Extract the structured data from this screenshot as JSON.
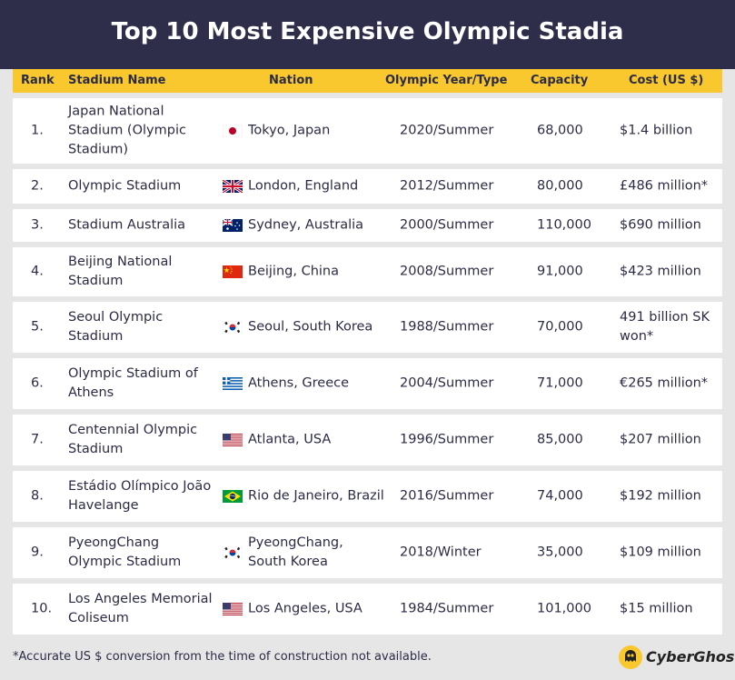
{
  "title": "Top 10 Most Expensive Olympic Stadia",
  "columns": {
    "rank": "Rank",
    "stadium": "Stadium Name",
    "nation": "Nation",
    "year": "Olympic Year/Type",
    "capacity": "Capacity",
    "cost": "Cost (US $)"
  },
  "rows": [
    {
      "rank": "1.",
      "stadium": "Japan National Stadium (Olympic Stadium)",
      "nation": "Tokyo, Japan",
      "flag": "japan-flag",
      "year": "2020/Summer",
      "capacity": "68,000",
      "cost": "$1.4 billion"
    },
    {
      "rank": "2.",
      "stadium": "Olympic Stadium",
      "nation": "London, England",
      "flag": "uk-flag",
      "year": "2012/Summer",
      "capacity": "80,000",
      "cost": "£486 million*"
    },
    {
      "rank": "3.",
      "stadium": "Stadium Australia",
      "nation": "Sydney, Australia",
      "flag": "australia-flag",
      "year": "2000/Summer",
      "capacity": "110,000",
      "cost": "$690 million"
    },
    {
      "rank": "4.",
      "stadium": "Beijing National Stadium",
      "nation": "Beijing, China",
      "flag": "china-flag",
      "year": "2008/Summer",
      "capacity": "91,000",
      "cost": "$423 million"
    },
    {
      "rank": "5.",
      "stadium": "Seoul Olympic Stadium",
      "nation": "Seoul, South Korea",
      "flag": "south-korea-flag",
      "year": "1988/Summer",
      "capacity": "70,000",
      "cost": "491 billion SK won*"
    },
    {
      "rank": "6.",
      "stadium": "Olympic Stadium of Athens",
      "nation": "Athens, Greece",
      "flag": "greece-flag",
      "year": "2004/Summer",
      "capacity": "71,000",
      "cost": "€265 million*"
    },
    {
      "rank": "7.",
      "stadium": "Centennial Olympic Stadium",
      "nation": "Atlanta, USA",
      "flag": "usa-flag",
      "year": "1996/Summer",
      "capacity": "85,000",
      "cost": "$207 million"
    },
    {
      "rank": "8.",
      "stadium": "Estádio Olímpico João Havelange",
      "nation": "Rio de Janeiro, Brazil",
      "flag": "brazil-flag",
      "year": "2016/Summer",
      "capacity": "74,000",
      "cost": "$192 million"
    },
    {
      "rank": "9.",
      "stadium": "PyeongChang Olympic Stadium",
      "nation": "PyeongChang, South Korea",
      "flag": "south-korea-flag",
      "year": "2018/Winter",
      "capacity": "35,000",
      "cost": "$109 million"
    },
    {
      "rank": "10.",
      "stadium": "Los Angeles Memorial Coliseum",
      "nation": "Los Angeles, USA",
      "flag": "usa-flag",
      "year": "1984/Summer",
      "capacity": "101,000",
      "cost": "$15 million"
    }
  ],
  "footnote": "*Accurate US $ conversion from the time of construction not available.",
  "brand": {
    "name": "CyberGhost",
    "icon": "cyberghost-logo-icon"
  },
  "colors": {
    "header_bg": "#2e2e4a",
    "column_header_bg": "#f8c82e",
    "row_bg": "#ffffff",
    "page_bg": "#e6e6e6"
  }
}
